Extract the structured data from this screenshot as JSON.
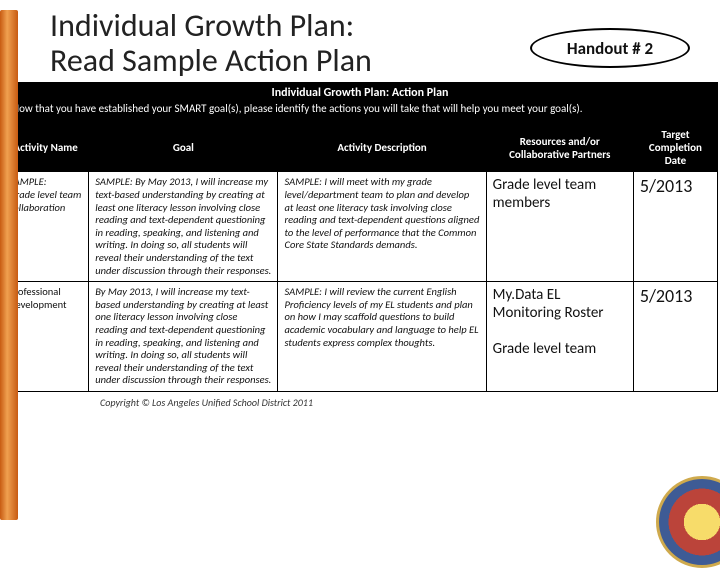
{
  "title_line1": "Individual Growth Plan:",
  "title_line2": "Read Sample Action Plan",
  "handout_label": "Handout # 2",
  "band": {
    "title": "Individual Growth Plan: Action Plan",
    "subtitle": "Now that you have established your SMART goal(s), please identify the actions you will take that will help you meet your goal(s)."
  },
  "columns": {
    "c0": "Activity Name",
    "c1": "Goal",
    "c2": "Activity Description",
    "c3": "Resources and/or Collaborative Partners",
    "c4": "Target Completion Date"
  },
  "rows": {
    "r0": {
      "name": "SAMPLE:\nGrade level team collaboration",
      "goal": "SAMPLE: By May 2013, I will increase my text-based understanding by creating at least one literacy lesson involving close reading and text-dependent questioning in reading, speaking, and listening and writing. In doing so, all students will reveal their understanding of the text under discussion through their responses.",
      "desc": "SAMPLE: I will meet with my grade level/department team to plan and develop at least one literacy task involving close reading and text-dependent questions aligned to the level of performance that the Common Core State Standards demands.",
      "res": "Grade level team members",
      "date": "5/2013"
    },
    "r1": {
      "name": "Professional Development",
      "goal": "By May 2013, I will increase my text-based understanding by creating at least one literacy lesson involving close reading and text-dependent questioning in reading, speaking, and listening and writing. In doing so, all students will reveal their understanding of the text under discussion through their responses.",
      "desc": "SAMPLE: I will review the current English Proficiency levels of my EL students and plan on how I may scaffold questions to build academic vocabulary and language to help EL students express complex thoughts.",
      "res": "My.Data EL Monitoring Roster\n\nGrade level team",
      "date": "5/2013"
    }
  },
  "copyright": "Copyright © Los Angeles Unified School District 2011",
  "colors": {
    "accent_bar_dark": "#c75b12",
    "accent_bar_light": "#f0a050",
    "band_bg": "#000000",
    "band_fg": "#ffffff"
  }
}
